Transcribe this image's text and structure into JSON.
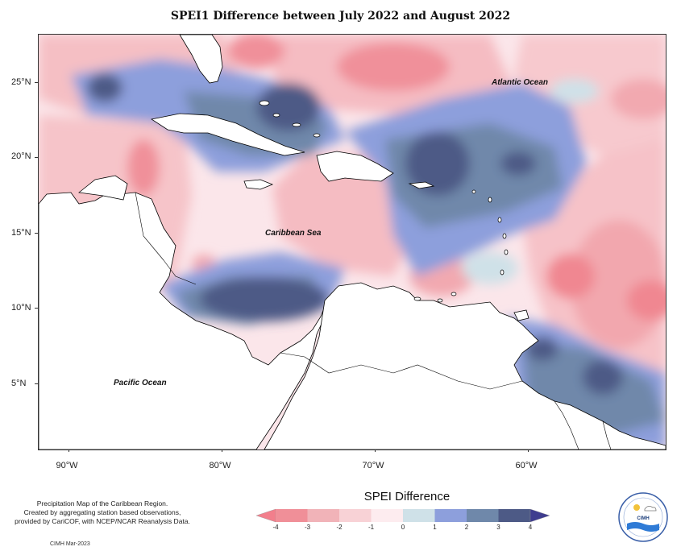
{
  "title": "SPEI1 Difference between July 2022 and August 2022",
  "map": {
    "latitude_labels": [
      "25°N",
      "20°N",
      "15°N",
      "10°N",
      "5°N"
    ],
    "longitude_labels": [
      "90°W",
      "80°W",
      "70°W",
      "60°W"
    ],
    "region_labels": {
      "atlantic": "Atlantic Ocean",
      "caribbean": "Caribbean Sea",
      "pacific": "Pacific Ocean"
    },
    "extent": {
      "lon_min": -92,
      "lon_max": -51,
      "lat_min": 1,
      "lat_max": 28
    }
  },
  "legend": {
    "title": "SPEI Difference",
    "tick_labels": [
      "-4",
      "-3",
      "-2",
      "-1",
      "0",
      "1",
      "2",
      "3",
      "4"
    ],
    "colors": [
      "#f08f98",
      "#f1b3b8",
      "#f8d2d6",
      "#fdecef",
      "#cfe1e8",
      "#8d9fdc",
      "#6f88aa",
      "#4d5a86"
    ],
    "under_color": "#f27f8c",
    "over_color": "#3f3d8f"
  },
  "footer": {
    "note_lines": [
      "Precipitation Map of the Caribbean Region.",
      "Created by aggregating station based observations,",
      "provided by CariCOF, with NCEP/NCAR Reanalysis Data."
    ],
    "credit": "CIMH Mar-2023"
  },
  "logo": {
    "text": "CIMH"
  }
}
